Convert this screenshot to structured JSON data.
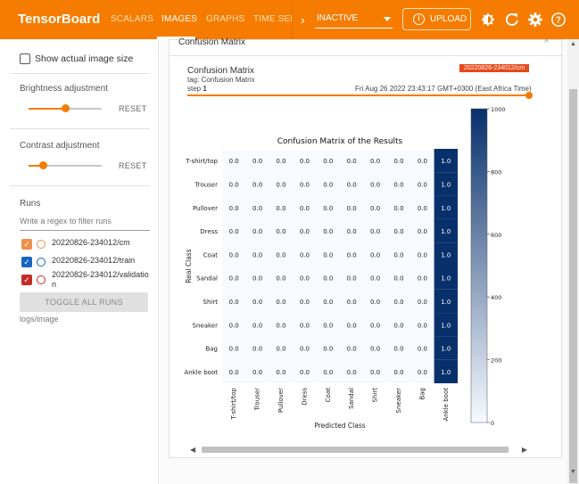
{
  "app": {
    "brand": "TensorBoard"
  },
  "nav": {
    "tabs": [
      {
        "label": "SCALARS"
      },
      {
        "label": "IMAGES"
      },
      {
        "label": "GRAPHS"
      },
      {
        "label": "TIME SERIE"
      }
    ],
    "active_tab": "IMAGES",
    "status_select": "INACTIVE",
    "upload_label": "UPLOAD",
    "icons": [
      "brightness-icon",
      "refresh-icon",
      "settings-icon",
      "help-icon"
    ],
    "colors": {
      "bar": "#f57c00"
    }
  },
  "sidebar": {
    "show_actual_size_label": "Show actual image size",
    "brightness": {
      "title": "Brightness adjustment",
      "reset": "RESET",
      "value": 0.5
    },
    "contrast": {
      "title": "Contrast adjustment",
      "reset": "RESET",
      "value": 0.2
    },
    "runs": {
      "title": "Runs",
      "filter_placeholder": "Write a regex to filter runs",
      "items": [
        {
          "name": "20220826-234012/cm",
          "color": "#ef8f4a",
          "checked": true
        },
        {
          "name": "20220826-234012/train",
          "color": "#1565c0",
          "checked": true
        },
        {
          "name": "20220826-234012/validation",
          "color": "#c62828",
          "checked": true
        }
      ],
      "toggle_all": "TOGGLE ALL RUNS",
      "logdir": "logs/image"
    }
  },
  "card": {
    "header": "Confusion Matrix",
    "title": "Confusion Matrix",
    "tag": "tag: Confusion Matrix",
    "step_label": "step",
    "step_value": "1",
    "run_badge": "20220826-234012/cm",
    "timestamp": "Fri Aug 26 2022 23:43:17 GMT+0300 (East Africa Time)"
  },
  "chart_data": {
    "type": "heatmap",
    "title": "Confusion Matrix of the Results",
    "xlabel": "Predicted Class",
    "ylabel": "Real Class",
    "classes": [
      "T-shirt/top",
      "Trouser",
      "Pullover",
      "Dress",
      "Coat",
      "Sandal",
      "Shirt",
      "Sneaker",
      "Bag",
      "Ankle boot"
    ],
    "matrix": [
      [
        0.0,
        0.0,
        0.0,
        0.0,
        0.0,
        0.0,
        0.0,
        0.0,
        0.0,
        1.0
      ],
      [
        0.0,
        0.0,
        0.0,
        0.0,
        0.0,
        0.0,
        0.0,
        0.0,
        0.0,
        1.0
      ],
      [
        0.0,
        0.0,
        0.0,
        0.0,
        0.0,
        0.0,
        0.0,
        0.0,
        0.0,
        1.0
      ],
      [
        0.0,
        0.0,
        0.0,
        0.0,
        0.0,
        0.0,
        0.0,
        0.0,
        0.0,
        1.0
      ],
      [
        0.0,
        0.0,
        0.0,
        0.0,
        0.0,
        0.0,
        0.0,
        0.0,
        0.0,
        1.0
      ],
      [
        0.0,
        0.0,
        0.0,
        0.0,
        0.0,
        0.0,
        0.0,
        0.0,
        0.0,
        1.0
      ],
      [
        0.0,
        0.0,
        0.0,
        0.0,
        0.0,
        0.0,
        0.0,
        0.0,
        0.0,
        1.0
      ],
      [
        0.0,
        0.0,
        0.0,
        0.0,
        0.0,
        0.0,
        0.0,
        0.0,
        0.0,
        1.0
      ],
      [
        0.0,
        0.0,
        0.0,
        0.0,
        0.0,
        0.0,
        0.0,
        0.0,
        0.0,
        1.0
      ],
      [
        0.0,
        0.0,
        0.0,
        0.0,
        0.0,
        0.0,
        0.0,
        0.0,
        0.0,
        1.0
      ]
    ],
    "cell_labels": [
      "0.0",
      "1.0"
    ],
    "colorbar": {
      "ticks": [
        0,
        200,
        400,
        600,
        800,
        1000
      ],
      "range": [
        0,
        1000
      ],
      "colormap": "Blues"
    },
    "colors": {
      "low": "#f7fbff",
      "high": "#08306b"
    }
  }
}
